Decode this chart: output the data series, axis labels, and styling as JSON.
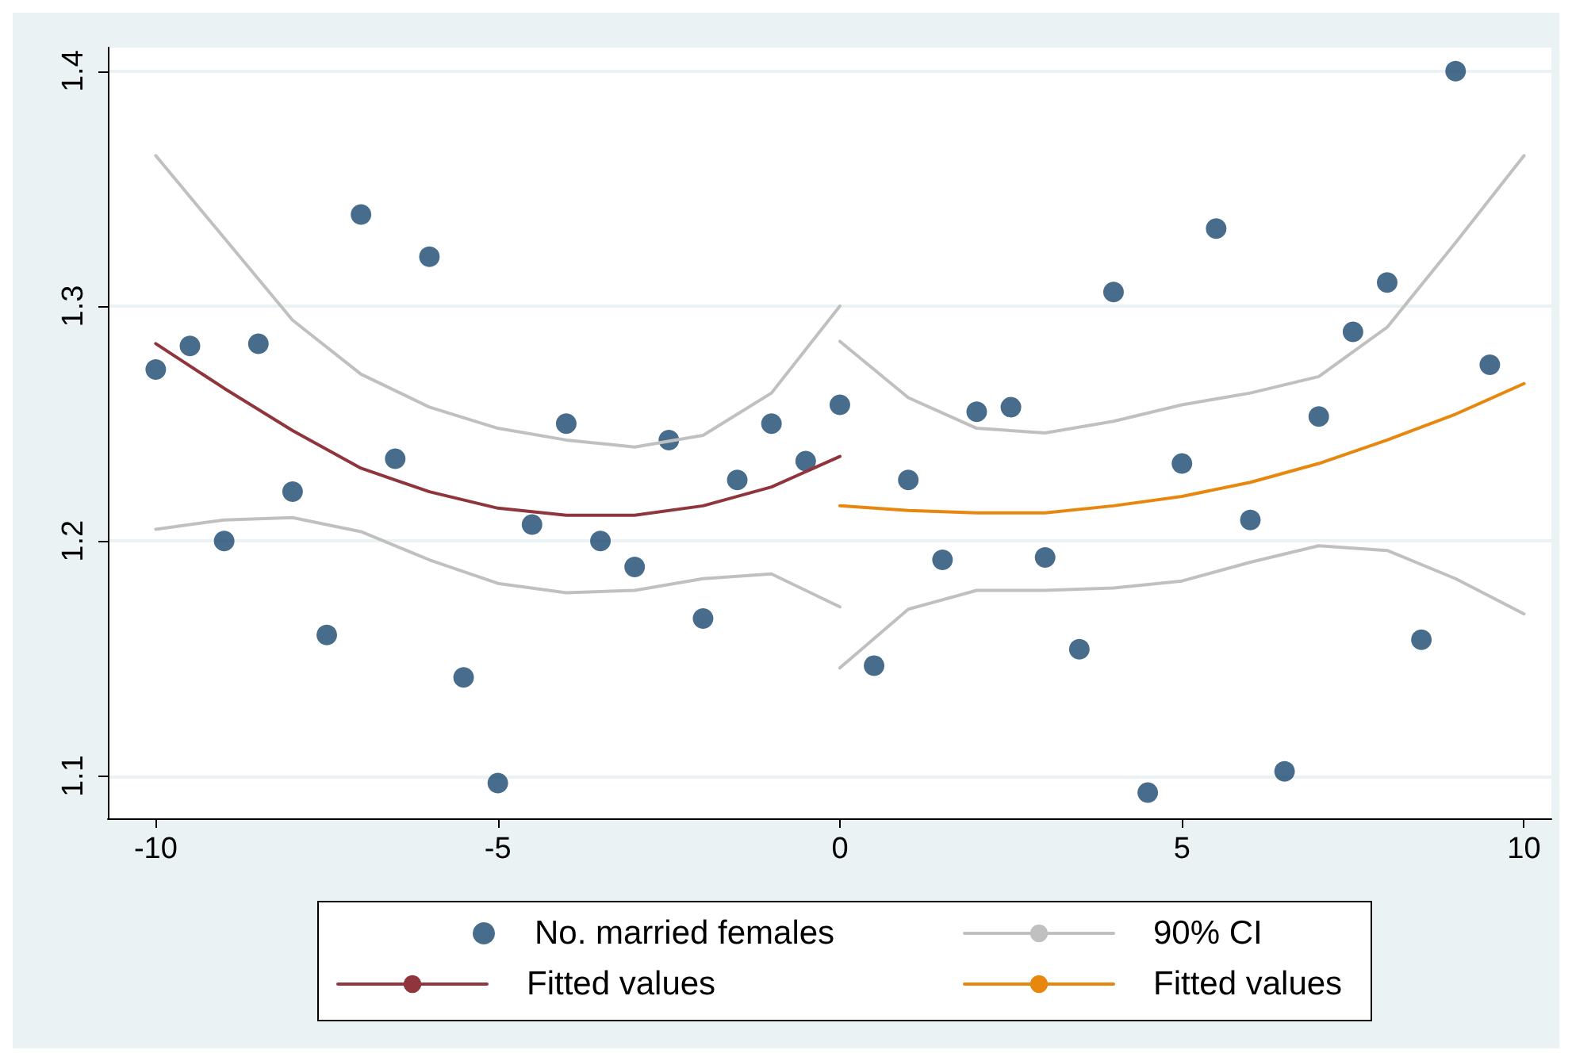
{
  "chart_data": {
    "type": "scatter",
    "xlim": [
      -10.7,
      10.4
    ],
    "xticks": [
      -10,
      -5,
      0,
      5,
      10
    ],
    "ylim": [
      1.082,
      1.41
    ],
    "yticks": [
      1.1,
      1.2,
      1.3,
      1.4
    ],
    "grid": "y",
    "legend": "bottom",
    "series": [
      {
        "name": "No. married females",
        "marker": "circle",
        "color": "#1a476f",
        "x": [
          -10,
          -9.5,
          -9,
          -8.5,
          -8,
          -7.5,
          -7,
          -6.5,
          -6,
          -5.5,
          -5,
          -4.5,
          -4,
          -3.5,
          -3,
          -2.5,
          -2,
          -1.5,
          -1,
          -0.5,
          0,
          0.5,
          1,
          1.5,
          2,
          2.5,
          3,
          3.5,
          4,
          4.5,
          5,
          5.5,
          6,
          6.5,
          7,
          7.5,
          8,
          8.5,
          9,
          9.5
        ],
        "values": [
          1.273,
          1.283,
          1.2,
          1.284,
          1.221,
          1.16,
          1.339,
          1.235,
          1.321,
          1.142,
          1.097,
          1.207,
          1.25,
          1.2,
          1.189,
          1.243,
          1.167,
          1.226,
          1.25,
          1.234,
          1.258,
          1.147,
          1.226,
          1.192,
          1.255,
          1.257,
          1.193,
          1.154,
          1.306,
          1.093,
          1.233,
          1.333,
          1.209,
          1.102,
          1.253,
          1.289,
          1.31,
          1.158,
          1.4,
          1.275
        ]
      },
      {
        "name": "90% CI",
        "type": "line",
        "marker": "none",
        "color": "#c0c0c0",
        "x": [
          -10,
          -9,
          -8,
          -7,
          -6,
          -5,
          -4,
          -3,
          -2,
          -1,
          0
        ],
        "values": [
          1.364,
          1.329,
          1.294,
          1.271,
          1.257,
          1.248,
          1.243,
          1.24,
          1.245,
          1.263,
          1.3
        ]
      },
      {
        "type": "line",
        "marker": "none",
        "color": "#c0c0c0",
        "x": [
          -10,
          -9,
          -8,
          -7,
          -6,
          -5,
          -4,
          -3,
          -2,
          -1,
          0
        ],
        "values": [
          1.205,
          1.209,
          1.21,
          1.204,
          1.192,
          1.182,
          1.178,
          1.179,
          1.184,
          1.186,
          1.172
        ]
      },
      {
        "name": "Fitted values",
        "type": "line",
        "marker": "none",
        "color": "#90353b",
        "x": [
          -10,
          -9,
          -8,
          -7,
          -6,
          -5,
          -4,
          -3,
          -2,
          -1,
          0
        ],
        "values": [
          1.284,
          1.265,
          1.247,
          1.231,
          1.221,
          1.214,
          1.211,
          1.211,
          1.215,
          1.223,
          1.236
        ]
      },
      {
        "type": "line",
        "marker": "none",
        "color": "#c0c0c0",
        "x": [
          0,
          1,
          2,
          3,
          4,
          5,
          6,
          7,
          8,
          9,
          10
        ],
        "values": [
          1.285,
          1.261,
          1.248,
          1.246,
          1.251,
          1.258,
          1.263,
          1.27,
          1.291,
          1.327,
          1.364
        ]
      },
      {
        "type": "line",
        "marker": "none",
        "color": "#c0c0c0",
        "x": [
          0,
          1,
          2,
          3,
          4,
          5,
          6,
          7,
          8,
          9,
          10
        ],
        "values": [
          1.146,
          1.171,
          1.179,
          1.179,
          1.18,
          1.183,
          1.191,
          1.198,
          1.196,
          1.184,
          1.169
        ]
      },
      {
        "name": "Fitted values",
        "type": "line",
        "marker": "none",
        "color": "#e8870e",
        "x": [
          0,
          1,
          2,
          3,
          4,
          5,
          6,
          7,
          8,
          9,
          10
        ],
        "values": [
          1.215,
          1.213,
          1.212,
          1.212,
          1.215,
          1.219,
          1.225,
          1.233,
          1.243,
          1.254,
          1.267
        ]
      }
    ]
  }
}
